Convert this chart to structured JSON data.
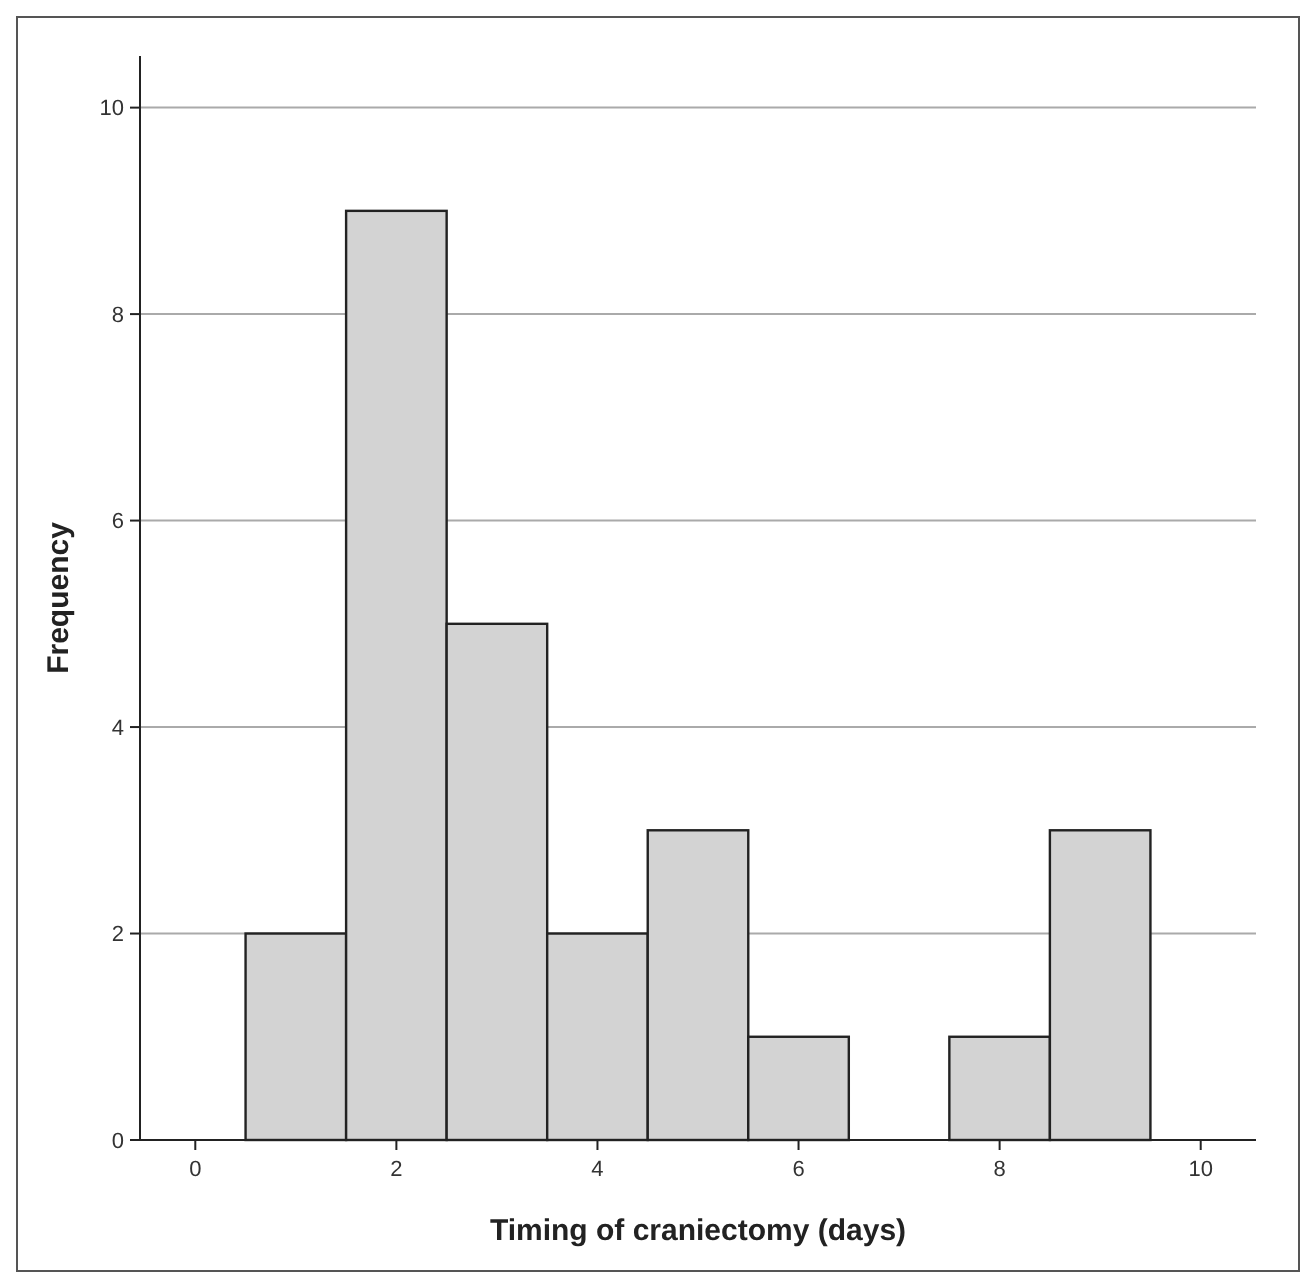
{
  "chart_data": {
    "type": "histogram",
    "xlabel": "Timing of craniectomy (days)",
    "ylabel": "Frequency",
    "bins": [
      0.5,
      1.5,
      2.5,
      3.5,
      4.5,
      5.5,
      6.5,
      7.5,
      8.5,
      9.5
    ],
    "values": [
      2,
      9,
      5,
      2,
      3,
      1,
      0,
      1,
      3
    ],
    "color": "#d3d3d3",
    "xlim": [
      -0.55,
      10.55
    ],
    "xticks": [
      0,
      2,
      4,
      6,
      8,
      10
    ],
    "ylim": [
      0,
      10.5
    ],
    "yticks": [
      0,
      2,
      4,
      6,
      8,
      10
    ],
    "grid": "y"
  }
}
